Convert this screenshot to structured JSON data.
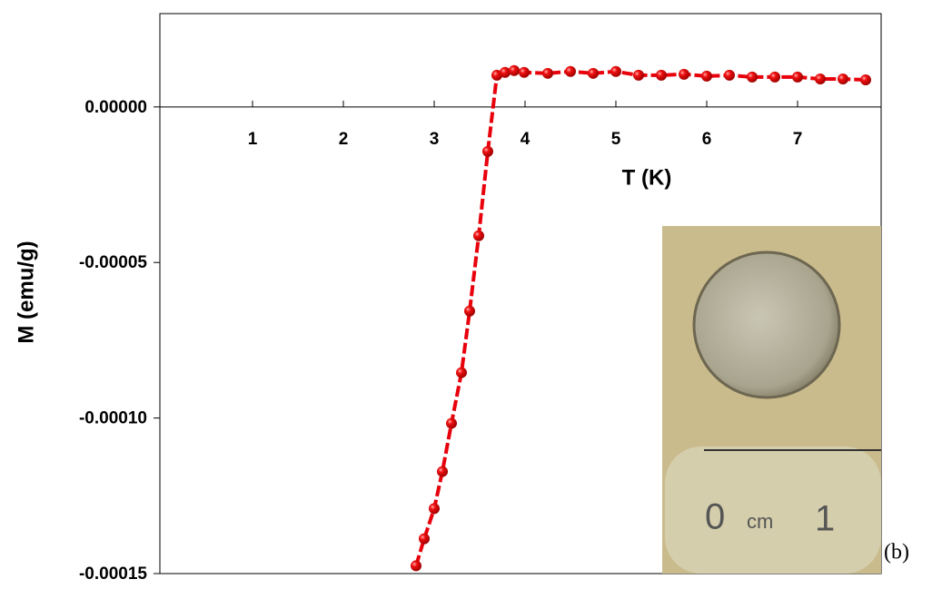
{
  "chart_data": {
    "type": "line",
    "x_label": "T (K)",
    "y_label": "M (emu/g)",
    "annotation": "(b)",
    "inset_labels": [
      "0",
      "cm",
      "1"
    ],
    "x": [
      2.8,
      2.89,
      3.0,
      3.09,
      3.19,
      3.3,
      3.39,
      3.49,
      3.59,
      3.69,
      3.78,
      3.88,
      3.99,
      4.25,
      4.5,
      4.75,
      5.0,
      5.25,
      5.5,
      5.75,
      6.0,
      6.25,
      6.5,
      6.75,
      7.0,
      7.25,
      7.5,
      7.75
    ],
    "series": [
      {
        "color": "#e8000b",
        "values": [
          -0.0001475,
          -0.0001388,
          -0.0001291,
          -0.0001172,
          -0.0001017,
          -8.54e-05,
          -6.56e-05,
          -4.14e-05,
          -1.43e-05,
          1.02e-05,
          1.11e-05,
          1.17e-05,
          1.11e-05,
          1.08e-05,
          1.14e-05,
          1.08e-05,
          1.14e-05,
          1.02e-05,
          1.02e-05,
          1.05e-05,
          9.9e-06,
          1.02e-05,
          9.6e-06,
          9.6e-06,
          9.6e-06,
          9e-06,
          9e-06,
          8.7e-06
        ]
      }
    ],
    "xlim": [
      -0.02,
      7.92
    ],
    "xticks": [
      1,
      2,
      3,
      4,
      5,
      6,
      7
    ],
    "ylim": [
      -0.00015,
      3e-05
    ],
    "yticks": [
      {
        "value": 0,
        "label": "0.00000"
      },
      {
        "value": -5e-05,
        "label": "-0.00005"
      },
      {
        "value": -0.0001,
        "label": "-0.00010"
      },
      {
        "value": -0.00015,
        "label": "-0.00015"
      }
    ],
    "grid": false
  }
}
